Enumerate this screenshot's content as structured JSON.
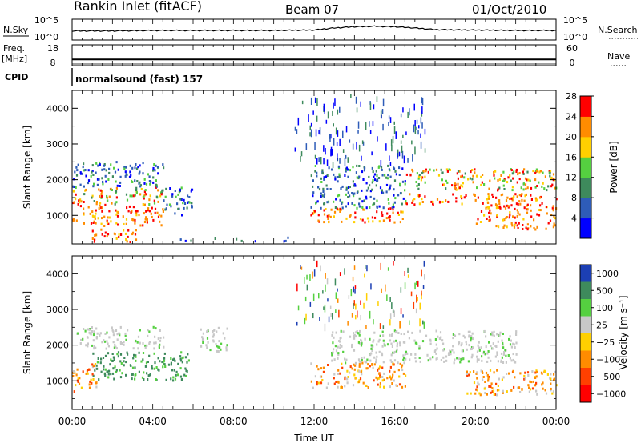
{
  "header": {
    "station": "Rankin Inlet (fitACF)",
    "beam": "Beam 07",
    "date": "01/Oct/2010"
  },
  "side_labels": {
    "nsky": "N.Sky",
    "nsearch": "N.Search",
    "freq_line1": "Freq.",
    "freq_line2": "[MHz]",
    "nave": "Nave",
    "cpid": "CPID"
  },
  "chart_data": [
    {
      "type": "line",
      "panel": "noise",
      "left_ticks": [
        "10^5",
        "10^0"
      ],
      "right_ticks": [
        "10^5",
        "10^0"
      ],
      "x": [
        "00:00",
        "02:00",
        "04:00",
        "06:00",
        "08:00",
        "10:00",
        "12:00",
        "13:00",
        "14:00",
        "15:00",
        "16:00",
        "17:00",
        "18:00",
        "20:00",
        "22:00",
        "24:00"
      ],
      "series": [
        {
          "name": "N.Sky",
          "values": [
            2.2,
            2.2,
            2.3,
            2.3,
            2.3,
            2.3,
            2.4,
            2.9,
            3.2,
            3.3,
            3.2,
            2.9,
            2.5,
            2.4,
            2.3,
            2.3
          ]
        }
      ]
    },
    {
      "type": "line",
      "panel": "frequency",
      "left_ticks": [
        "18",
        "8"
      ],
      "right_ticks": [
        "60",
        "0"
      ],
      "x": [
        "00:00",
        "24:00"
      ],
      "series": [
        {
          "name": "Freq.",
          "values": [
            11,
            11
          ]
        }
      ]
    },
    {
      "type": "heatmap",
      "panel": "power",
      "cpid_text": "normalsound (fast) 157",
      "ylabel": "Slant Range [km]",
      "yticks": [
        "1000",
        "2000",
        "3000",
        "4000"
      ],
      "ylim": [
        200,
        4500
      ],
      "xlim": [
        0,
        24
      ],
      "colorbar": {
        "label": "Power [dB]",
        "ticks": [
          "4",
          "8",
          "12",
          "16",
          "20",
          "24",
          "28"
        ],
        "range": [
          0,
          32
        ],
        "colors": [
          "#0000ff",
          "#2e5cb8",
          "#3e8a5c",
          "#55d040",
          "#ffd000",
          "#ff8c00",
          "#ff0000"
        ]
      },
      "regions": [
        {
          "t0": 0.0,
          "t1": 4.5,
          "r0": 700,
          "r1": 1300,
          "level": "high"
        },
        {
          "t0": 0.0,
          "t1": 4.5,
          "r0": 1300,
          "r1": 1800,
          "level": "mid"
        },
        {
          "t0": 0.0,
          "t1": 4.5,
          "r0": 1800,
          "r1": 2500,
          "level": "low"
        },
        {
          "t0": 0.8,
          "t1": 3.2,
          "r0": 250,
          "r1": 600,
          "level": "high"
        },
        {
          "t0": 4.5,
          "t1": 6.0,
          "r0": 1000,
          "r1": 1800,
          "level": "low"
        },
        {
          "t0": 5.0,
          "t1": 12.0,
          "r0": 200,
          "r1": 400,
          "level": "faint"
        },
        {
          "t0": 11.8,
          "t1": 16.5,
          "r0": 800,
          "r1": 1200,
          "level": "high"
        },
        {
          "t0": 11.8,
          "t1": 16.5,
          "r0": 1200,
          "r1": 2400,
          "level": "low"
        },
        {
          "t0": 16.5,
          "t1": 24.0,
          "r0": 1300,
          "r1": 1600,
          "level": "high"
        },
        {
          "t0": 16.5,
          "t1": 24.0,
          "r0": 1700,
          "r1": 2300,
          "level": "mid"
        },
        {
          "t0": 20.0,
          "t1": 24.0,
          "r0": 600,
          "r1": 1300,
          "level": "high"
        }
      ]
    },
    {
      "type": "heatmap",
      "panel": "velocity",
      "xlabel": "Time UT",
      "ylabel": "Slant Range [km]",
      "yticks": [
        "1000",
        "2000",
        "3000",
        "4000"
      ],
      "xticks": [
        "00:00",
        "04:00",
        "08:00",
        "12:00",
        "16:00",
        "20:00",
        "00:00"
      ],
      "ylim": [
        200,
        4500
      ],
      "xlim": [
        0,
        24
      ],
      "colorbar": {
        "label": "Velocity [m s⁻¹]",
        "ticks": [
          "1000",
          "500",
          "100",
          "25",
          "−25",
          "−100",
          "−500",
          "−1000"
        ],
        "colors": [
          "#1c3fb4",
          "#3e8a5c",
          "#55d040",
          "#c8c8c8",
          "#ffd000",
          "#ff8c00",
          "#ff4000",
          "#ff0000"
        ]
      },
      "regions": [
        {
          "t0": 1.0,
          "t1": 5.8,
          "r0": 1000,
          "r1": 1800,
          "vel": "500"
        },
        {
          "t0": 0.0,
          "t1": 1.2,
          "r0": 700,
          "r1": 1500,
          "vel": "-100"
        },
        {
          "t0": 0.2,
          "t1": 4.5,
          "r0": 1900,
          "r1": 2500,
          "vel": "25"
        },
        {
          "t0": 6.3,
          "t1": 7.8,
          "r0": 1800,
          "r1": 2500,
          "vel": "25"
        },
        {
          "t0": 11.8,
          "t1": 16.5,
          "r0": 800,
          "r1": 1500,
          "vel": "-100"
        },
        {
          "t0": 12.8,
          "t1": 22.0,
          "r0": 1500,
          "r1": 2400,
          "vel": "25"
        },
        {
          "t0": 19.5,
          "t1": 24.0,
          "r0": 600,
          "r1": 1300,
          "vel": "-100"
        }
      ]
    }
  ]
}
